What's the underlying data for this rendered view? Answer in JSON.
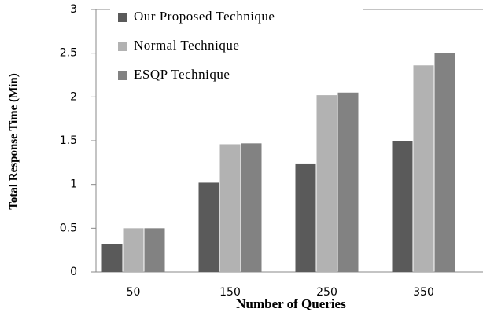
{
  "chart_data": {
    "type": "bar",
    "x_label": "Number of Queries",
    "y_label": "Total Response Time (Min)",
    "categories": [
      "50",
      "150",
      "250",
      "350"
    ],
    "series": [
      {
        "name": "Our Proposed Technique",
        "color": "#5a5a5a",
        "values": [
          0.32,
          1.02,
          1.24,
          1.5
        ]
      },
      {
        "name": "Normal Technique",
        "color": "#b2b2b2",
        "values": [
          0.5,
          1.46,
          2.02,
          2.36
        ]
      },
      {
        "name": "ESQP Technique",
        "color": "#828282",
        "values": [
          0.5,
          1.47,
          2.05,
          2.5
        ]
      }
    ],
    "ylim": [
      0,
      3
    ],
    "yticks": [
      0,
      0.5,
      1,
      1.5,
      2,
      2.5,
      3
    ],
    "grid": false,
    "legend": "upper left"
  }
}
